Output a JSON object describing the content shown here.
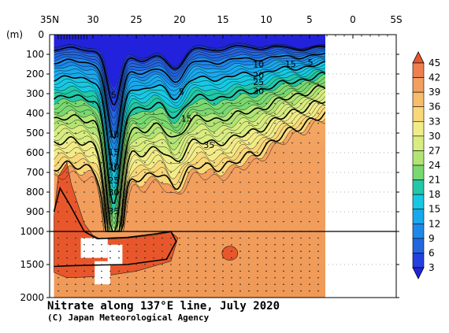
{
  "chart_data": {
    "type": "heatmap",
    "title": "Nitrate along 137°E line, July 2020",
    "credit": "(C) Japan Meteorological Agency",
    "ylabel": "(m)",
    "x_ticks": [
      "35N",
      "30",
      "25",
      "20",
      "15",
      "10",
      "5",
      "0",
      "5S"
    ],
    "x_tick_values": [
      35,
      30,
      25,
      20,
      15,
      10,
      5,
      0,
      -5
    ],
    "xlim": [
      35,
      -5
    ],
    "y_ticks_upper": [
      "0",
      "100",
      "200",
      "300",
      "400",
      "500",
      "600",
      "700",
      "800",
      "900",
      "1000"
    ],
    "y_tick_upper_values": [
      0,
      100,
      200,
      300,
      400,
      500,
      600,
      700,
      800,
      900,
      1000
    ],
    "y_ticks_lower": [
      "1500",
      "2000"
    ],
    "y_tick_lower_values": [
      1500,
      2000
    ],
    "ylim": [
      0,
      2000
    ],
    "data_lat_range": [
      34.5,
      3
    ],
    "colorbar_levels": [
      "45",
      "42",
      "39",
      "36",
      "33",
      "30",
      "27",
      "24",
      "21",
      "18",
      "15",
      "12",
      "9",
      "6",
      "3"
    ],
    "colorbar_level_values": [
      45,
      42,
      39,
      36,
      33,
      30,
      27,
      24,
      21,
      18,
      15,
      12,
      9,
      6,
      3
    ],
    "colorbar_colors": [
      "#e8572b",
      "#ee8050",
      "#f2a060",
      "#f6bd6a",
      "#f8d878",
      "#f2ec88",
      "#d8ec80",
      "#b2e474",
      "#7ad870",
      "#22c8a8",
      "#18c8e2",
      "#1aa8ec",
      "#1e88e8",
      "#2466de",
      "#2440e0",
      "#2222dc"
    ],
    "bold_contour_levels": [
      5,
      10,
      15,
      20,
      25,
      30,
      35
    ],
    "contour_labels": [
      {
        "text": "5",
        "lat": 27.6,
        "depth": 305
      },
      {
        "text": "10",
        "lat": 27.6,
        "depth": 505
      },
      {
        "text": "15",
        "lat": 27.6,
        "depth": 595
      },
      {
        "text": "20",
        "lat": 27.6,
        "depth": 670
      },
      {
        "text": "25",
        "lat": 27.6,
        "depth": 740
      },
      {
        "text": "30",
        "lat": 27.6,
        "depth": 800
      },
      {
        "text": "35",
        "lat": 27.6,
        "depth": 895
      },
      {
        "text": "5",
        "lat": 19.8,
        "depth": 290
      },
      {
        "text": "15",
        "lat": 19.2,
        "depth": 425
      },
      {
        "text": "35",
        "lat": 16.6,
        "depth": 560
      },
      {
        "text": "10",
        "lat": 10.9,
        "depth": 150
      },
      {
        "text": "15",
        "lat": 7.2,
        "depth": 148
      },
      {
        "text": "5",
        "lat": 4.9,
        "depth": 140
      },
      {
        "text": "20",
        "lat": 10.9,
        "depth": 205
      },
      {
        "text": "25",
        "lat": 10.9,
        "depth": 240
      },
      {
        "text": "30",
        "lat": 10.9,
        "depth": 285
      }
    ]
  }
}
